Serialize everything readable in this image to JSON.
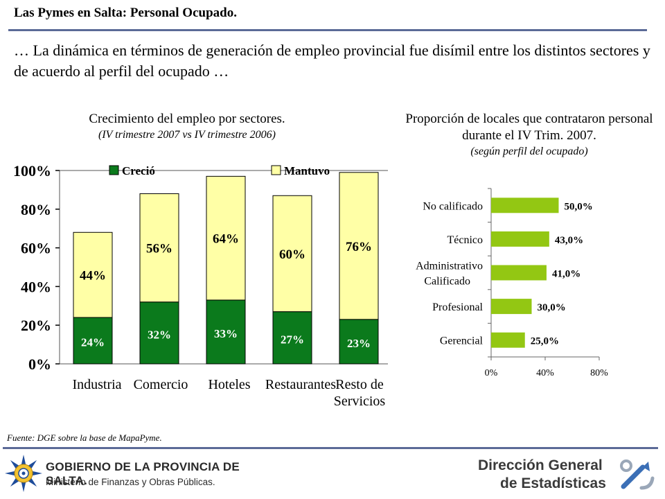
{
  "header": {
    "title": "Las Pymes en Salta: Personal Ocupado."
  },
  "intro": "… La dinámica en términos de generación de empleo provincial fue disímil entre los distintos sectores y de acuerdo al perfil del ocupado …",
  "colors": {
    "rule": "#5b6a97",
    "crecio": "#0b7a1c",
    "mantuvo": "#ffffa6",
    "hbar": "#93c713"
  },
  "chart_data": [
    {
      "type": "bar",
      "stacked": true,
      "title": "Crecimiento del empleo por sectores.",
      "subtitle": "(IV trimestre 2007 vs IV trimestre 2006)",
      "categories": [
        "Industria",
        "Comercio",
        "Hoteles",
        "Restaurantes",
        "Resto de Servicios"
      ],
      "series": [
        {
          "name": "Creció",
          "values": [
            24,
            32,
            33,
            27,
            23
          ],
          "labels": [
            "24%",
            "32%",
            "33%",
            "27%",
            "23%"
          ],
          "color": "#0b7a1c"
        },
        {
          "name": "Mantuvo",
          "values": [
            44,
            56,
            64,
            60,
            76
          ],
          "labels": [
            "44%",
            "56%",
            "64%",
            "60%",
            "76%"
          ],
          "color": "#ffffa6"
        }
      ],
      "ylim": [
        0,
        100
      ],
      "yticks": [
        "0%",
        "20%",
        "40%",
        "60%",
        "80%",
        "100%"
      ],
      "legend_position": "top",
      "grid": false
    },
    {
      "type": "bar",
      "orientation": "horizontal",
      "title": "Proporción de locales que contrataron personal durante el IV Trim. 2007.",
      "subtitle": "(según perfil del ocupado)",
      "categories": [
        "No calificado",
        "Técnico",
        "Administrativo Calificado",
        "Profesional",
        "Gerencial"
      ],
      "values": [
        50.0,
        43.0,
        41.0,
        30.0,
        25.0
      ],
      "labels": [
        "50,0%",
        "43,0%",
        "41,0%",
        "30,0%",
        "25,0%"
      ],
      "xlim": [
        0,
        80
      ],
      "xticks": [
        "0%",
        "40%",
        "80%"
      ],
      "color": "#93c713"
    }
  ],
  "source": "Fuente: DGE sobre la base de MapaPyme.",
  "footer": {
    "gov_line1": "GOBIERNO DE LA PROVINCIA DE SALTA.",
    "gov_line2": "Ministerio de Finanzas y Obras Públicas.",
    "dge_line1": "Dirección General",
    "dge_line2": "de Estadísticas"
  }
}
